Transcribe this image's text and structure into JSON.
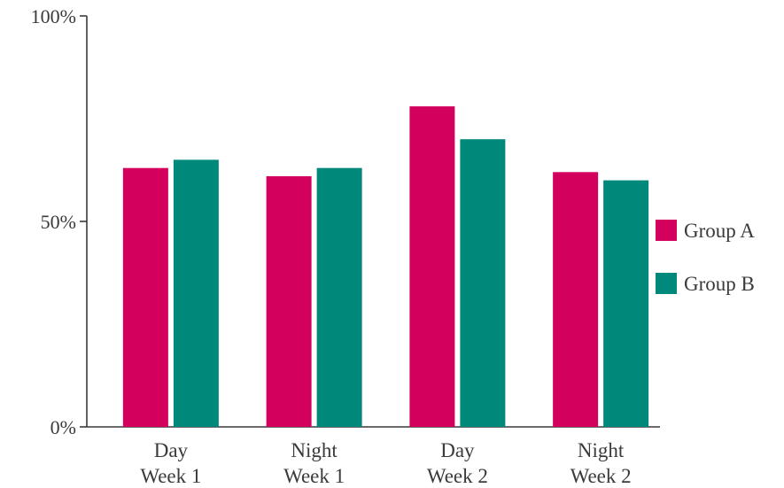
{
  "chart_data": {
    "type": "bar",
    "categories": [
      [
        "Day",
        "Week 1"
      ],
      [
        "Night",
        "Week 1"
      ],
      [
        "Day",
        "Week 2"
      ],
      [
        "Night",
        "Week 2"
      ]
    ],
    "series": [
      {
        "name": "Group A",
        "color": "#d4005e",
        "values": [
          63,
          61,
          78,
          62
        ]
      },
      {
        "name": "Group B",
        "color": "#00897b",
        "values": [
          65,
          63,
          70,
          60
        ]
      }
    ],
    "ylim": [
      0,
      100
    ],
    "yticks": [
      0,
      50,
      100
    ],
    "ytick_labels": [
      "0%",
      "50%",
      "100%"
    ],
    "legend_position": "right",
    "grid": false
  }
}
